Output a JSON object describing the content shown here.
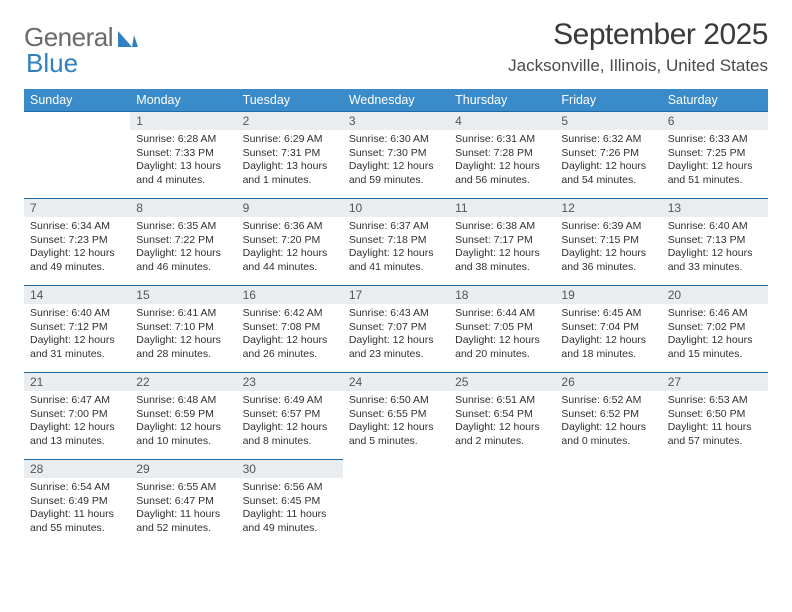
{
  "logo": {
    "word1": "General",
    "word2": "Blue"
  },
  "header": {
    "title": "September 2025",
    "subtitle": "Jacksonville, Illinois, United States"
  },
  "colors": {
    "header_bg": "#3a8bc9",
    "header_fg": "#ffffff",
    "row_border": "#1f6aa5",
    "daynum_bg": "#e9edf0",
    "logo_gray": "#6b6b6b",
    "logo_blue": "#2f7fc1"
  },
  "weekdays": [
    "Sunday",
    "Monday",
    "Tuesday",
    "Wednesday",
    "Thursday",
    "Friday",
    "Saturday"
  ],
  "weeks": [
    [
      {
        "blank": true
      },
      {
        "d": "1",
        "sr": "6:28 AM",
        "ss": "7:33 PM",
        "dl": "13 hours and 4 minutes."
      },
      {
        "d": "2",
        "sr": "6:29 AM",
        "ss": "7:31 PM",
        "dl": "13 hours and 1 minutes."
      },
      {
        "d": "3",
        "sr": "6:30 AM",
        "ss": "7:30 PM",
        "dl": "12 hours and 59 minutes."
      },
      {
        "d": "4",
        "sr": "6:31 AM",
        "ss": "7:28 PM",
        "dl": "12 hours and 56 minutes."
      },
      {
        "d": "5",
        "sr": "6:32 AM",
        "ss": "7:26 PM",
        "dl": "12 hours and 54 minutes."
      },
      {
        "d": "6",
        "sr": "6:33 AM",
        "ss": "7:25 PM",
        "dl": "12 hours and 51 minutes."
      }
    ],
    [
      {
        "d": "7",
        "sr": "6:34 AM",
        "ss": "7:23 PM",
        "dl": "12 hours and 49 minutes."
      },
      {
        "d": "8",
        "sr": "6:35 AM",
        "ss": "7:22 PM",
        "dl": "12 hours and 46 minutes."
      },
      {
        "d": "9",
        "sr": "6:36 AM",
        "ss": "7:20 PM",
        "dl": "12 hours and 44 minutes."
      },
      {
        "d": "10",
        "sr": "6:37 AM",
        "ss": "7:18 PM",
        "dl": "12 hours and 41 minutes."
      },
      {
        "d": "11",
        "sr": "6:38 AM",
        "ss": "7:17 PM",
        "dl": "12 hours and 38 minutes."
      },
      {
        "d": "12",
        "sr": "6:39 AM",
        "ss": "7:15 PM",
        "dl": "12 hours and 36 minutes."
      },
      {
        "d": "13",
        "sr": "6:40 AM",
        "ss": "7:13 PM",
        "dl": "12 hours and 33 minutes."
      }
    ],
    [
      {
        "d": "14",
        "sr": "6:40 AM",
        "ss": "7:12 PM",
        "dl": "12 hours and 31 minutes."
      },
      {
        "d": "15",
        "sr": "6:41 AM",
        "ss": "7:10 PM",
        "dl": "12 hours and 28 minutes."
      },
      {
        "d": "16",
        "sr": "6:42 AM",
        "ss": "7:08 PM",
        "dl": "12 hours and 26 minutes."
      },
      {
        "d": "17",
        "sr": "6:43 AM",
        "ss": "7:07 PM",
        "dl": "12 hours and 23 minutes."
      },
      {
        "d": "18",
        "sr": "6:44 AM",
        "ss": "7:05 PM",
        "dl": "12 hours and 20 minutes."
      },
      {
        "d": "19",
        "sr": "6:45 AM",
        "ss": "7:04 PM",
        "dl": "12 hours and 18 minutes."
      },
      {
        "d": "20",
        "sr": "6:46 AM",
        "ss": "7:02 PM",
        "dl": "12 hours and 15 minutes."
      }
    ],
    [
      {
        "d": "21",
        "sr": "6:47 AM",
        "ss": "7:00 PM",
        "dl": "12 hours and 13 minutes."
      },
      {
        "d": "22",
        "sr": "6:48 AM",
        "ss": "6:59 PM",
        "dl": "12 hours and 10 minutes."
      },
      {
        "d": "23",
        "sr": "6:49 AM",
        "ss": "6:57 PM",
        "dl": "12 hours and 8 minutes."
      },
      {
        "d": "24",
        "sr": "6:50 AM",
        "ss": "6:55 PM",
        "dl": "12 hours and 5 minutes."
      },
      {
        "d": "25",
        "sr": "6:51 AM",
        "ss": "6:54 PM",
        "dl": "12 hours and 2 minutes."
      },
      {
        "d": "26",
        "sr": "6:52 AM",
        "ss": "6:52 PM",
        "dl": "12 hours and 0 minutes."
      },
      {
        "d": "27",
        "sr": "6:53 AM",
        "ss": "6:50 PM",
        "dl": "11 hours and 57 minutes."
      }
    ],
    [
      {
        "d": "28",
        "sr": "6:54 AM",
        "ss": "6:49 PM",
        "dl": "11 hours and 55 minutes."
      },
      {
        "d": "29",
        "sr": "6:55 AM",
        "ss": "6:47 PM",
        "dl": "11 hours and 52 minutes."
      },
      {
        "d": "30",
        "sr": "6:56 AM",
        "ss": "6:45 PM",
        "dl": "11 hours and 49 minutes."
      },
      {
        "blank": true,
        "trailing": true
      },
      {
        "blank": true,
        "trailing": true
      },
      {
        "blank": true,
        "trailing": true
      },
      {
        "blank": true,
        "trailing": true
      }
    ]
  ],
  "label_sunrise": "Sunrise:",
  "label_sunset": "Sunset:",
  "label_daylight": "Daylight:"
}
